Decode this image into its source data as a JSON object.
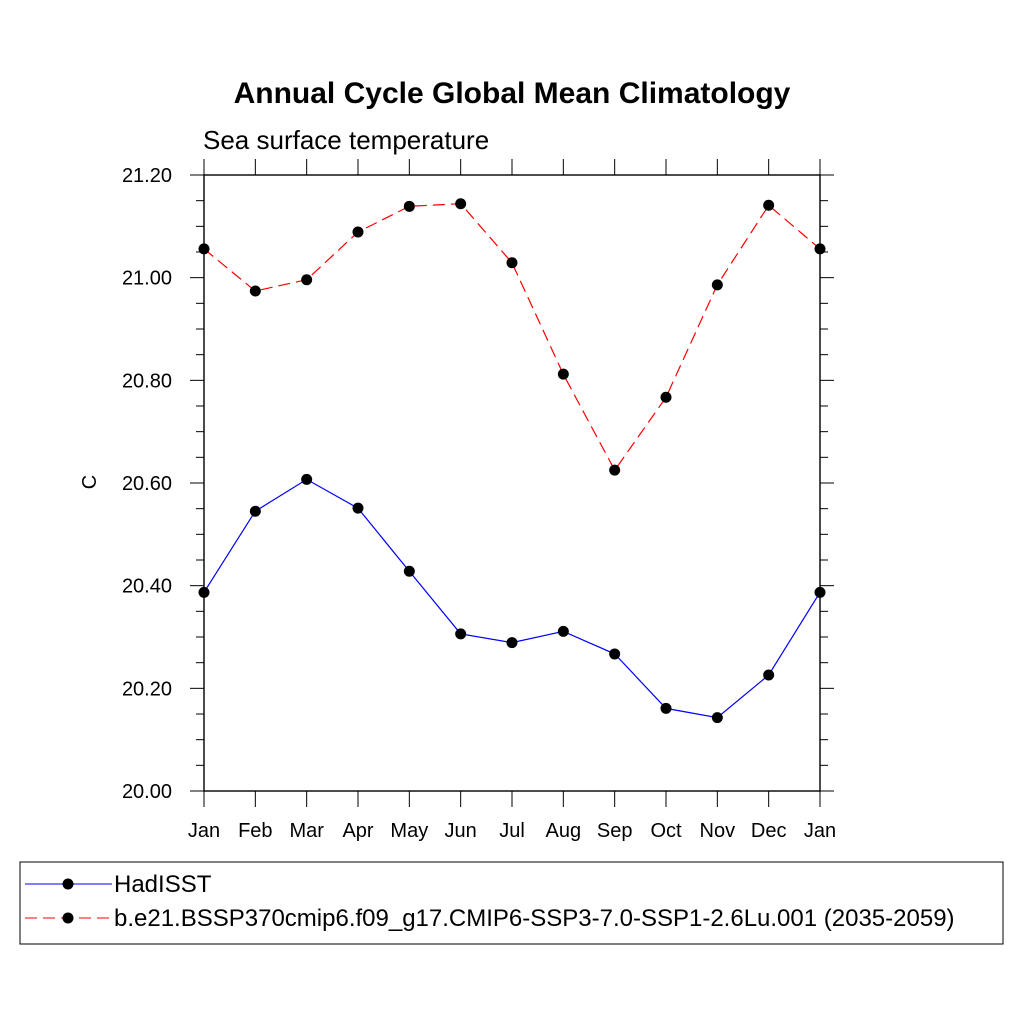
{
  "chart_data": {
    "type": "line",
    "title": "Annual Cycle Global Mean Climatology",
    "subtitle": "Sea surface temperature",
    "xlabel": "",
    "ylabel": "C",
    "ylim": [
      20.0,
      21.2
    ],
    "yticks": [
      "20.00",
      "20.20",
      "20.40",
      "20.60",
      "20.80",
      "21.00",
      "21.20"
    ],
    "categories": [
      "Jan",
      "Feb",
      "Mar",
      "Apr",
      "May",
      "Jun",
      "Jul",
      "Aug",
      "Sep",
      "Oct",
      "Nov",
      "Dec",
      "Jan"
    ],
    "series": [
      {
        "name": "HadISST",
        "color": "#0000ff",
        "dash": "solid",
        "values": [
          20.387,
          20.545,
          20.607,
          20.551,
          20.428,
          20.306,
          20.289,
          20.311,
          20.267,
          20.161,
          20.143,
          20.226,
          20.387
        ]
      },
      {
        "name": "b.e21.BSSP370cmip6.f09_g17.CMIP6-SSP3-7.0-SSP1-2.6Lu.001 (2035-2059)",
        "color": "#ff0000",
        "dash": "dashed",
        "values": [
          21.056,
          20.974,
          20.996,
          21.089,
          21.139,
          21.144,
          21.029,
          20.812,
          20.625,
          20.767,
          20.986,
          21.141,
          21.056
        ]
      }
    ],
    "legend": "bottom",
    "grid": false,
    "marker": "filled-circle",
    "marker_color": "#000000"
  }
}
